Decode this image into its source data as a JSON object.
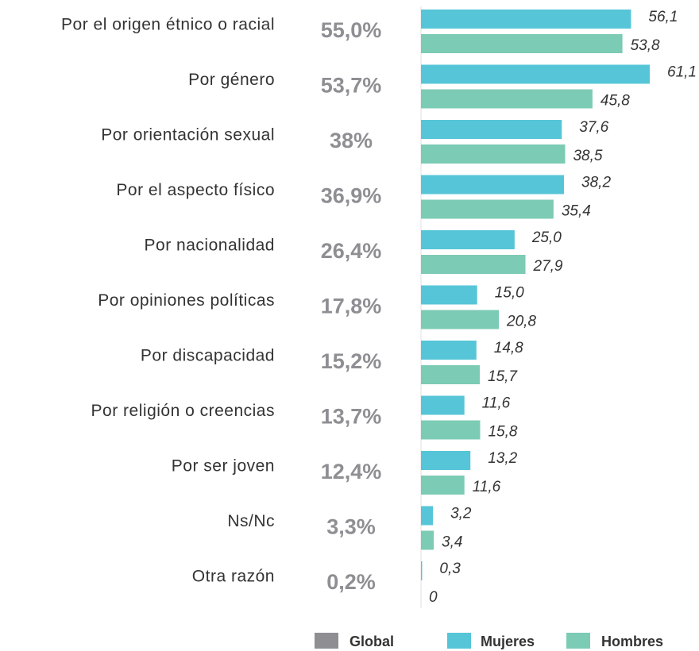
{
  "chart_data": {
    "type": "bar",
    "orientation": "horizontal",
    "categories": [
      "Por el origen étnico o racial",
      "Por género",
      "Por orientación sexual",
      "Por el aspecto físico",
      "Por nacionalidad",
      "Por opiniones políticas",
      "Por discapacidad",
      "Por religión o creencias",
      "Por ser joven",
      "Ns/Nc",
      "Otra razón"
    ],
    "series": [
      {
        "name": "Global",
        "color": "#8e8e93",
        "values": [
          55.0,
          53.7,
          38,
          36.9,
          26.4,
          17.8,
          15.2,
          13.7,
          12.4,
          3.3,
          0.2
        ],
        "value_labels": [
          "55,0%",
          "53,7%",
          "38%",
          "36,9%",
          "26,4%",
          "17,8%",
          "15,2%",
          "13,7%",
          "12,4%",
          "3,3%",
          "0,2%"
        ]
      },
      {
        "name": "Mujeres",
        "color": "#56c5d8",
        "values": [
          56.1,
          61.1,
          37.6,
          38.2,
          25.0,
          15.0,
          14.8,
          11.6,
          13.2,
          3.2,
          0.3
        ],
        "value_labels": [
          "56,1",
          "61,1",
          "37,6",
          "38,2",
          "25,0",
          "15,0",
          "14,8",
          "11,6",
          "13,2",
          "3,2",
          "0,3"
        ]
      },
      {
        "name": "Hombres",
        "color": "#7ccbb4",
        "values": [
          53.8,
          45.8,
          38.5,
          35.4,
          27.9,
          20.8,
          15.7,
          15.8,
          11.6,
          3.4,
          0
        ],
        "value_labels": [
          "53,8",
          "45,8",
          "38,5",
          "35,4",
          "27,9",
          "20,8",
          "15,7",
          "15,8",
          "11,6",
          "3,4",
          "0"
        ]
      }
    ]
  }
}
